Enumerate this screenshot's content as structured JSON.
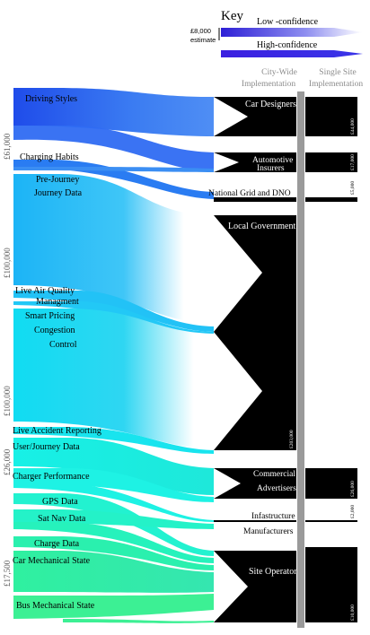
{
  "key": {
    "title": "Key",
    "low_confidence": "Low -confidence",
    "high_confidence": "High-confidence",
    "estimate_value": "£8,000",
    "estimate_word": "estimate"
  },
  "columns": {
    "city_wide": [
      "City-Wide",
      "Implementation"
    ],
    "single_site": [
      "Single Site",
      "Implementation"
    ]
  },
  "group_totals": [
    "£61,000",
    "£100,000",
    "£100,000",
    "£26,000",
    "£17,500"
  ],
  "sources": [
    {
      "label": "Driving Styles"
    },
    {
      "label": "Charging Habits"
    },
    {
      "label": "Pre-Journey Journey Data"
    },
    {
      "label": "Live Air Quality"
    },
    {
      "label": "Managment"
    },
    {
      "label": "Smart Pricing"
    },
    {
      "label": "Congestion Control"
    },
    {
      "label": "Live Accident Reporting"
    },
    {
      "label": "User/Journey Data"
    },
    {
      "label": "Charger Performance"
    },
    {
      "label": "GPS Data"
    },
    {
      "label": "Sat Nav Data"
    },
    {
      "label": "Charge Data"
    },
    {
      "label": "Car Mechanical State"
    },
    {
      "label": "Bus Mechanical State"
    }
  ],
  "targets": [
    {
      "label": "Car Designers",
      "value": "£44,000"
    },
    {
      "label": "Automotive Insurers",
      "value": "£17,000"
    },
    {
      "label": "National Grid and DNO",
      "value": "£5,000"
    },
    {
      "label": "Local Government",
      "value": "£203,000"
    },
    {
      "label": "Commercial Advertisers",
      "value": "£26,000"
    },
    {
      "label": "Infastructure Manufacturers",
      "value": "£2,000"
    },
    {
      "label": "Site Operator",
      "value": "£10,000"
    }
  ],
  "colors": {
    "blue": "#2a5ef0",
    "mid_blue": "#1aa6f5",
    "cyan": "#14e6f2",
    "teal": "#1ff0c4",
    "green": "#38f28c",
    "node": "#000000",
    "divider": "#9a9a9a"
  }
}
